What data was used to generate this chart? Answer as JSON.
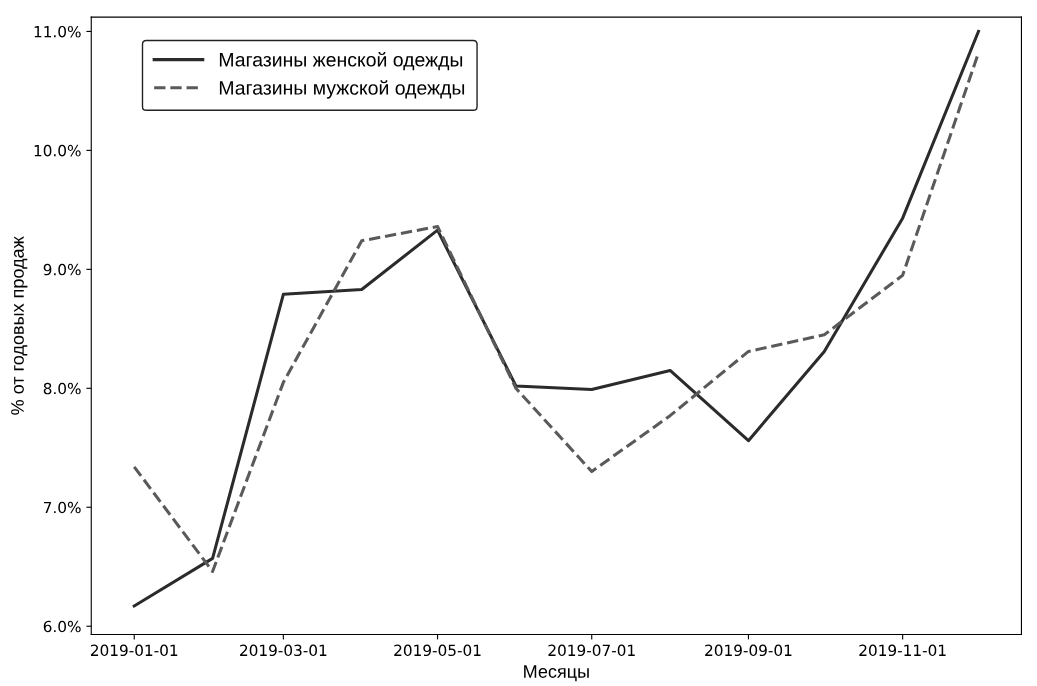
{
  "chart_data": {
    "type": "line",
    "xlabel": "Месяцы",
    "ylabel": "% от годовых продаж",
    "x": [
      "2019-01-01",
      "2019-02-01",
      "2019-03-01",
      "2019-04-01",
      "2019-05-01",
      "2019-06-01",
      "2019-07-01",
      "2019-08-01",
      "2019-09-01",
      "2019-10-01",
      "2019-11-01",
      "2019-12-01"
    ],
    "series": [
      {
        "name": "Магазины женской одежды",
        "color": "#2b2b2b",
        "line_style": "solid",
        "values": [
          6.17,
          6.57,
          8.79,
          8.83,
          9.33,
          8.02,
          7.99,
          8.15,
          7.56,
          8.31,
          9.43,
          11.0
        ]
      },
      {
        "name": "Магазины мужской одежды",
        "color": "#5a5a5a",
        "line_style": "dashed",
        "values": [
          7.34,
          6.46,
          8.05,
          9.24,
          9.36,
          8.0,
          7.3,
          7.77,
          8.31,
          8.45,
          8.95,
          10.82
        ]
      }
    ],
    "xlim": [
      "2018-12-15",
      "2019-12-18"
    ],
    "xticks": [
      {
        "value": "2019-01-01",
        "label": "2019-01-01"
      },
      {
        "value": "2019-03-01",
        "label": "2019-03-01"
      },
      {
        "value": "2019-05-01",
        "label": "2019-05-01"
      },
      {
        "value": "2019-07-01",
        "label": "2019-07-01"
      },
      {
        "value": "2019-09-01",
        "label": "2019-09-01"
      },
      {
        "value": "2019-11-01",
        "label": "2019-11-01"
      }
    ],
    "ylim": [
      5.93,
      11.12
    ],
    "yticks": [
      {
        "value": 6.0,
        "label": "6.0%"
      },
      {
        "value": 7.0,
        "label": "7.0%"
      },
      {
        "value": 8.0,
        "label": "8.0%"
      },
      {
        "value": 9.0,
        "label": "9.0%"
      },
      {
        "value": 10.0,
        "label": "10.0%"
      },
      {
        "value": 11.0,
        "label": "11.0%"
      }
    ],
    "grid": false,
    "legend": "top left",
    "marker": "none"
  }
}
